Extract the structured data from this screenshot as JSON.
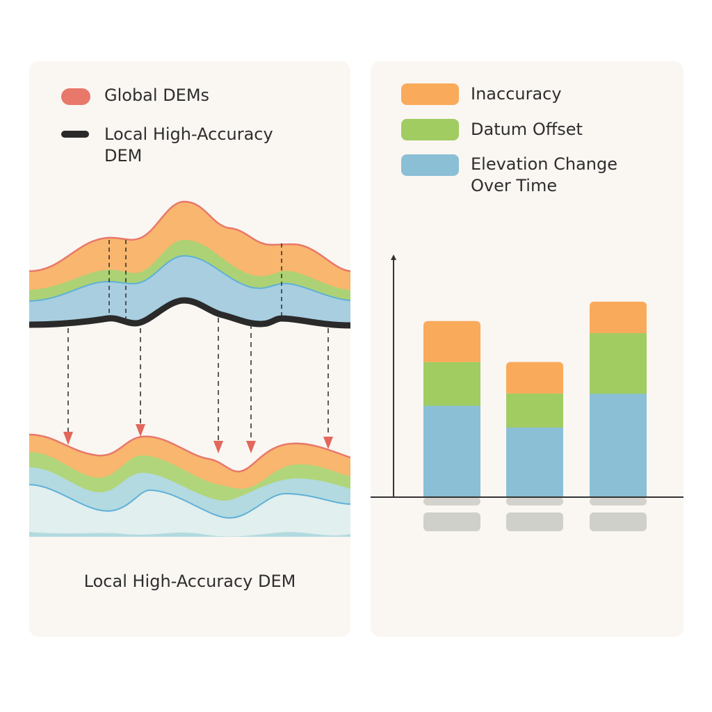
{
  "left_panel": {
    "legend": [
      {
        "label": "Global DEMs",
        "color": "#e8786a",
        "icon": "red-pill-swatch"
      },
      {
        "label": "Local High-Accuracy DEM",
        "color": "#2a2a2a",
        "icon": "black-line-swatch"
      }
    ],
    "caption": "Local High-Accuracy DEM",
    "layer_colors": {
      "inaccuracy": "#f8b56e",
      "datum_offset": "#a8d06a",
      "elevation_change": "#a8cfe0",
      "outline_red": "#e8786a",
      "outline_blue": "#5fb0d8",
      "arrow": "#e2675c"
    }
  },
  "right_panel": {
    "legend": [
      {
        "label": "Inaccuracy",
        "color": "#f9aa5a"
      },
      {
        "label": "Datum Offset",
        "color": "#a0cc62"
      },
      {
        "label": "Elevation Change Over Time",
        "color": "#8bbfd6"
      }
    ]
  },
  "chart_data": {
    "type": "bar",
    "stacked": true,
    "categories": [
      "",
      "",
      ""
    ],
    "series": [
      {
        "name": "Elevation Change Over Time",
        "values": [
          38,
          29,
          43
        ],
        "color": "#8bbfd6"
      },
      {
        "name": "Datum Offset",
        "values": [
          18,
          14,
          25
        ],
        "color": "#a0cc62"
      },
      {
        "name": "Inaccuracy",
        "values": [
          17,
          13,
          13
        ],
        "color": "#f9aa5a"
      }
    ],
    "ylim": [
      0,
      100
    ],
    "xlabel": "",
    "ylabel": "",
    "grid": false,
    "legend_position": "top"
  }
}
